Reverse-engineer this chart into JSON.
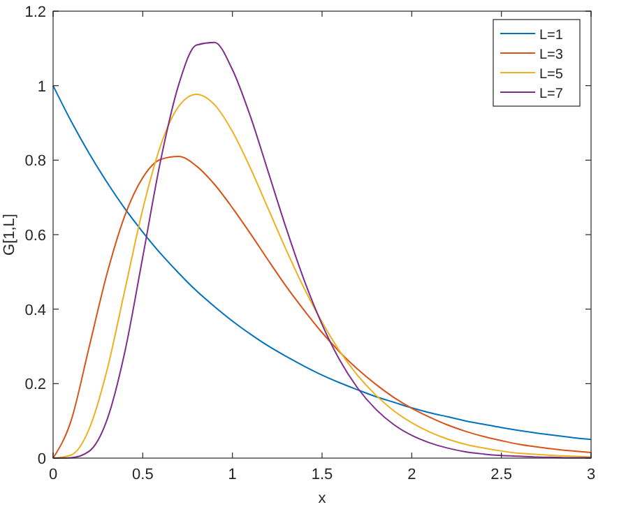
{
  "chart_data": {
    "type": "line",
    "xlabel": "x",
    "ylabel": "G[1,L]",
    "xlim": [
      0,
      3
    ],
    "ylim": [
      0,
      1.2
    ],
    "xticks": [
      0,
      0.5,
      1,
      1.5,
      2,
      2.5,
      3
    ],
    "yticks": [
      0,
      0.2,
      0.4,
      0.6,
      0.8,
      1,
      1.2
    ],
    "legend": "top right",
    "grid": false,
    "marker": "none",
    "line_style": "solid",
    "x": [
      0,
      0.1,
      0.2,
      0.3,
      0.4,
      0.5,
      0.6,
      0.7,
      0.8,
      0.9,
      1,
      1.1,
      1.2,
      1.3,
      1.4,
      1.5,
      1.6,
      1.7,
      1.8,
      1.9,
      2,
      2.1,
      2.2,
      2.3,
      2.4,
      2.5,
      2.6,
      2.7,
      2.8,
      2.9,
      3
    ],
    "series": [
      {
        "name": "L=1",
        "color": "#0072bd",
        "values": [
          1,
          0.905,
          0.819,
          0.741,
          0.67,
          0.607,
          0.549,
          0.497,
          0.449,
          0.407,
          0.368,
          0.333,
          0.301,
          0.273,
          0.247,
          0.223,
          0.202,
          0.183,
          0.165,
          0.15,
          0.135,
          0.122,
          0.111,
          0.1,
          0.091,
          0.082,
          0.074,
          0.067,
          0.061,
          0.055,
          0.05
        ]
      },
      {
        "name": "L=3",
        "color": "#d95319",
        "values": [
          0,
          0.1,
          0.296,
          0.494,
          0.651,
          0.753,
          0.802,
          0.81,
          0.784,
          0.735,
          0.672,
          0.603,
          0.531,
          0.461,
          0.397,
          0.337,
          0.284,
          0.238,
          0.198,
          0.163,
          0.134,
          0.11,
          0.089,
          0.072,
          0.058,
          0.047,
          0.037,
          0.03,
          0.024,
          0.019,
          0.015
        ]
      },
      {
        "name": "L=5",
        "color": "#edb120",
        "values": [
          0,
          0.008,
          0.077,
          0.235,
          0.451,
          0.668,
          0.84,
          0.944,
          0.977,
          0.949,
          0.877,
          0.779,
          0.669,
          0.559,
          0.456,
          0.365,
          0.286,
          0.221,
          0.169,
          0.127,
          0.095,
          0.07,
          0.051,
          0.037,
          0.027,
          0.019,
          0.013,
          0.01,
          0.007,
          0.005,
          0.003
        ]
      },
      {
        "name": "L=7",
        "color": "#7e2f8e",
        "values": [
          0,
          0.001,
          0.018,
          0.102,
          0.285,
          0.54,
          0.8,
          1.002,
          1.109,
          1.116,
          1.043,
          0.918,
          0.768,
          0.617,
          0.478,
          0.359,
          0.262,
          0.187,
          0.131,
          0.09,
          0.061,
          0.041,
          0.027,
          0.017,
          0.011,
          0.007,
          0.005,
          0.003,
          0.002,
          0.001,
          0.001
        ]
      }
    ]
  }
}
